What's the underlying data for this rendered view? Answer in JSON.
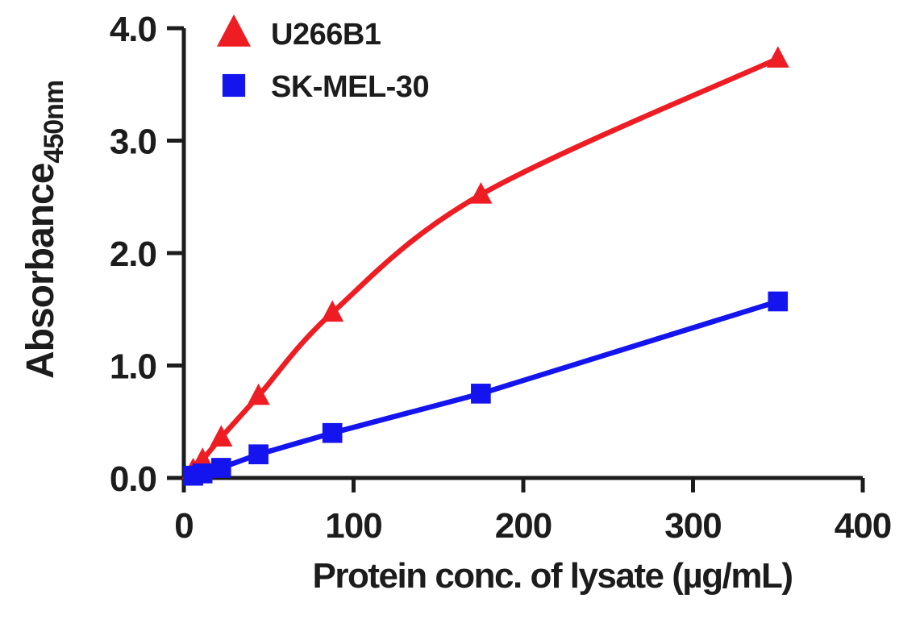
{
  "figure": {
    "background": "#ffffff",
    "ink_color": "#1c1c1c"
  },
  "chart_data": {
    "type": "line",
    "title": "",
    "xlabel": "Protein conc. of lysate (µg/mL)",
    "ylabel": "Absorbance",
    "ylabel_subscript": "450nm",
    "xlim": [
      0,
      400
    ],
    "ylim": [
      0,
      4.0
    ],
    "x_ticks": {
      "values": [
        0,
        100,
        200,
        300,
        400
      ],
      "labels": [
        "0",
        "100",
        "200",
        "300",
        "400"
      ]
    },
    "y_ticks": {
      "values": [
        0,
        1,
        2,
        3,
        4
      ],
      "labels": [
        "0.0",
        "1.0",
        "2.0",
        "3.0",
        "4.0"
      ]
    },
    "grid": false,
    "legend": {
      "position": "top-left-inside",
      "entries": [
        "U266B1",
        "SK-MEL-30"
      ]
    },
    "series": [
      {
        "name": "U266B1",
        "color": "#ee1c23",
        "marker": "triangle",
        "line_style": "smooth-curve",
        "x": [
          5.5,
          11,
          22,
          44,
          87.5,
          175,
          350
        ],
        "y": [
          0.07,
          0.16,
          0.36,
          0.73,
          1.47,
          2.52,
          3.73
        ]
      },
      {
        "name": "SK-MEL-30",
        "color": "#1414ef",
        "marker": "square",
        "line_style": "straight",
        "x": [
          5.5,
          11,
          22,
          44,
          87.5,
          175,
          350
        ],
        "y": [
          0.02,
          0.04,
          0.09,
          0.21,
          0.4,
          0.75,
          1.57
        ]
      }
    ]
  }
}
